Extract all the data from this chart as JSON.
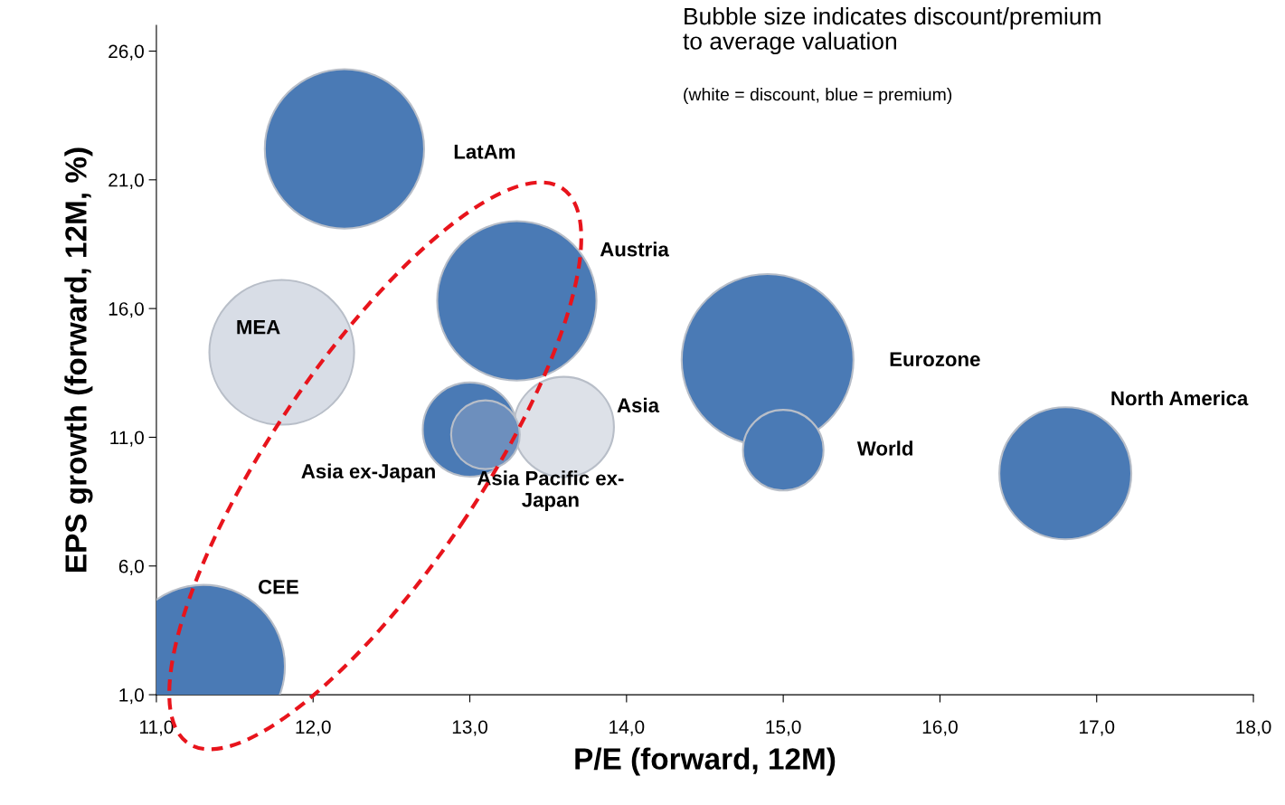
{
  "chart_data": {
    "type": "bubble",
    "xlabel": "P/E (forward, 12M)",
    "ylabel": "EPS growth (forward, 12M, %)",
    "annotations": [
      "Bubble size indicates discount/premium\nto average valuation",
      "(white = discount, blue = premium)"
    ],
    "xlim": [
      11,
      18
    ],
    "ylim": [
      1,
      27
    ],
    "xticks": [
      {
        "value": 11,
        "label": "11,0"
      },
      {
        "value": 12,
        "label": "12,0"
      },
      {
        "value": 13,
        "label": "13,0"
      },
      {
        "value": 14,
        "label": "14,0"
      },
      {
        "value": 15,
        "label": "15,0"
      },
      {
        "value": 16,
        "label": "16,0"
      },
      {
        "value": 17,
        "label": "17,0"
      },
      {
        "value": 18,
        "label": "18,0"
      }
    ],
    "yticks": [
      {
        "value": 1,
        "label": "1,0"
      },
      {
        "value": 6,
        "label": "6,0"
      },
      {
        "value": 11,
        "label": "11,0"
      },
      {
        "value": 16,
        "label": "16,0"
      },
      {
        "value": 21,
        "label": "21,0"
      },
      {
        "value": 26,
        "label": "26,0"
      }
    ],
    "grid": false,
    "legend": false,
    "series": [
      {
        "name": "LatAm",
        "color": "#4a7ab5",
        "x": [
          12.2
        ],
        "values": [
          22.2
        ],
        "sizes": [
          0.86
        ]
      },
      {
        "name": "Asia",
        "color": "#dde1e8",
        "x": [
          13.6
        ],
        "values": [
          11.4
        ],
        "sizes": [
          0.34
        ]
      },
      {
        "name": "Austria",
        "color": "#4a7ab5",
        "x": [
          13.3
        ],
        "values": [
          16.3
        ],
        "sizes": [
          0.86
        ]
      },
      {
        "name": "MEA",
        "color": "#d8dde6",
        "x": [
          11.8
        ],
        "values": [
          14.3
        ],
        "sizes": [
          0.71
        ]
      },
      {
        "name": "Eurozone",
        "color": "#4a7ab5",
        "x": [
          14.9
        ],
        "values": [
          14.0
        ],
        "sizes": [
          1
        ]
      },
      {
        "name": "Asia ex-Japan",
        "color": "#4a7ab5",
        "x": [
          13.0
        ],
        "values": [
          11.3
        ],
        "sizes": [
          0.3
        ]
      },
      {
        "name": "Asia Pacific ex-\nJapan",
        "color": "#6d8fbd",
        "x": [
          13.1
        ],
        "values": [
          11.1
        ],
        "sizes": [
          0.16
        ]
      },
      {
        "name": "World",
        "color": "#4a7ab5",
        "x": [
          15.0
        ],
        "values": [
          10.5
        ],
        "sizes": [
          0.22
        ]
      },
      {
        "name": "North America",
        "color": "#4a7ab5",
        "x": [
          16.8
        ],
        "values": [
          9.6
        ],
        "sizes": [
          0.59
        ]
      },
      {
        "name": "CEE",
        "color": "#4a7ab5",
        "x": [
          11.3
        ],
        "values": [
          2.1
        ],
        "sizes": [
          0.9
        ]
      }
    ]
  }
}
